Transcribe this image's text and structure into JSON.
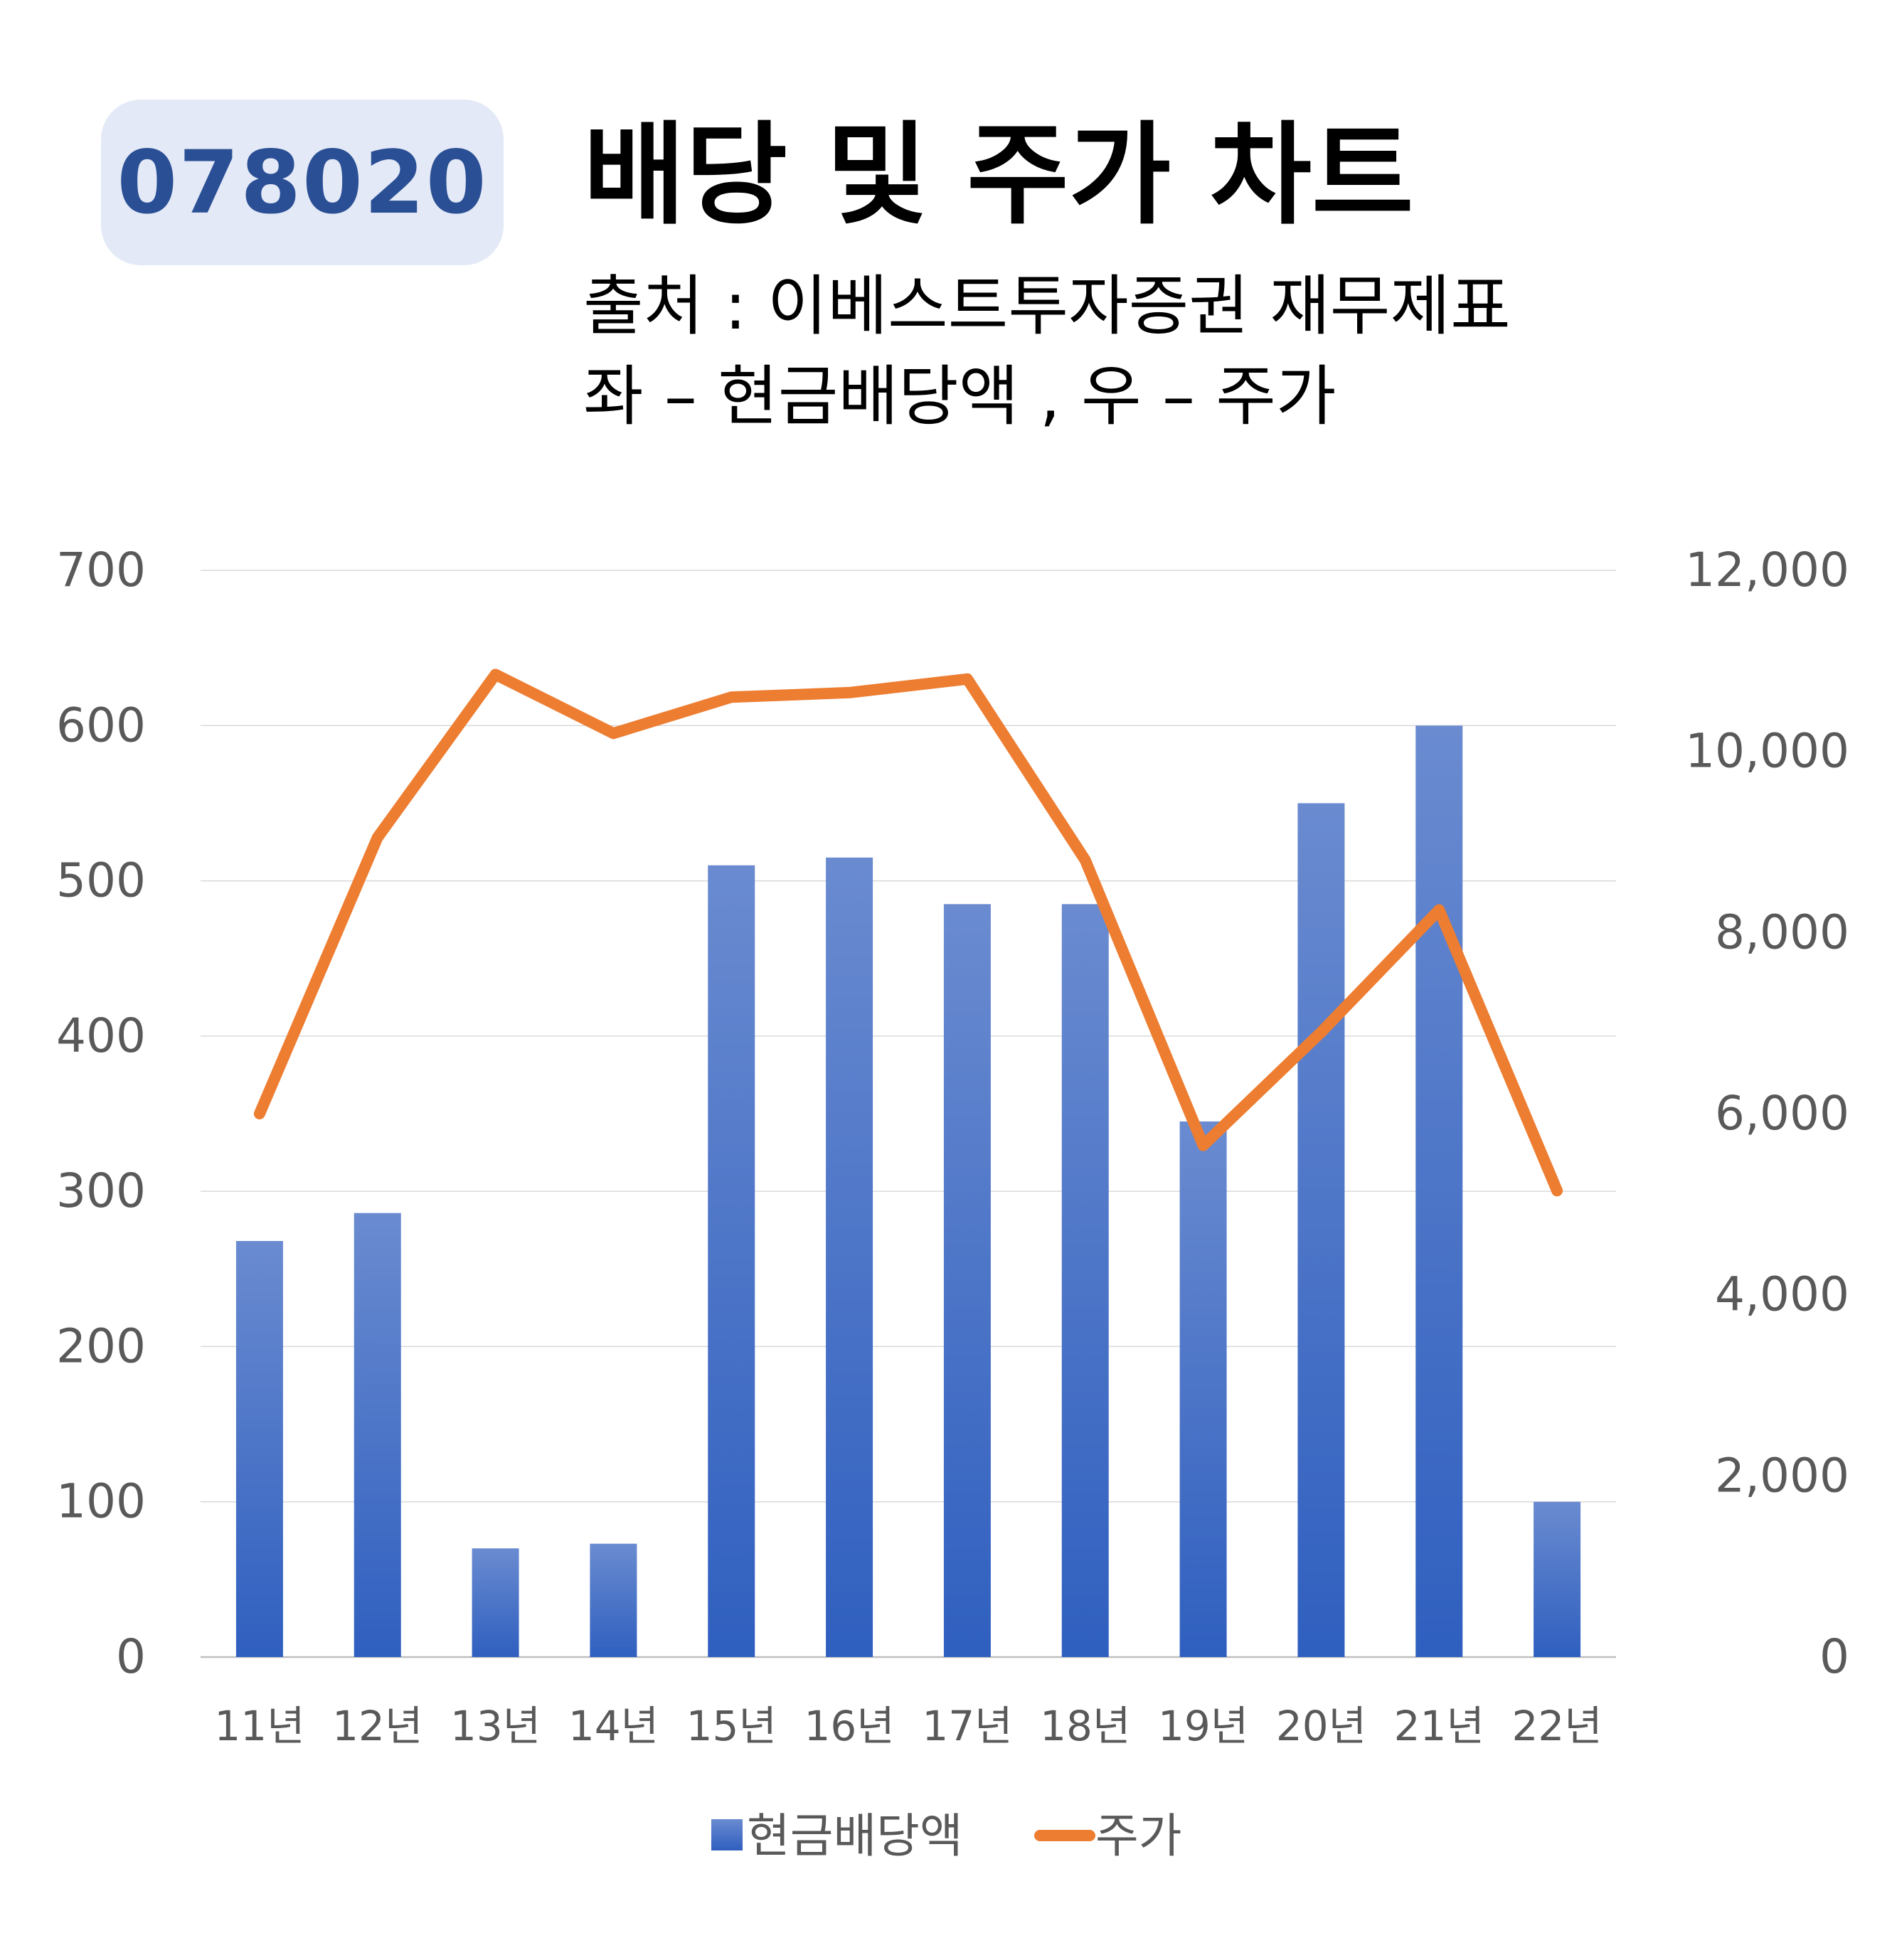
{
  "header": {
    "code": "078020",
    "title": "배당 및 주가 차트",
    "subtitle_source": "출처 : 이베스트투자증권 재무제표",
    "subtitle_axes": "좌 – 현금배당액 , 우 – 주가"
  },
  "colors": {
    "bar_top": "#6a8bd0",
    "bar_bottom": "#2f5fbf",
    "line": "#ed7d31",
    "grid": "#d9d9d9",
    "badge_bg": "#e3e9f6",
    "badge_text": "#2a4f95"
  },
  "chart_data": {
    "type": "bar",
    "categories": [
      "11년",
      "12년",
      "13년",
      "14년",
      "15년",
      "16년",
      "17년",
      "18년",
      "19년",
      "20년",
      "21년",
      "22년"
    ],
    "series": [
      {
        "name": "현금배당액",
        "type": "bar",
        "axis": "left",
        "values": [
          268,
          286,
          70,
          73,
          510,
          515,
          485,
          485,
          345,
          550,
          600,
          100
        ]
      },
      {
        "name": "주가",
        "type": "line",
        "axis": "right",
        "values": [
          6000,
          9050,
          10850,
          10200,
          10600,
          10650,
          10800,
          8800,
          5650,
          6900,
          8250,
          5150
        ]
      }
    ],
    "left_axis": {
      "ylim": [
        0,
        700
      ],
      "ticks": [
        0,
        100,
        200,
        300,
        400,
        500,
        600,
        700
      ],
      "tick_labels": [
        "0",
        "100",
        "200",
        "300",
        "400",
        "500",
        "600",
        "700"
      ]
    },
    "right_axis": {
      "ylim": [
        0,
        12000
      ],
      "ticks": [
        0,
        2000,
        4000,
        6000,
        8000,
        10000,
        12000
      ],
      "tick_labels": [
        "0",
        "2,000",
        "4,000",
        "6,000",
        "8,000",
        "10,000",
        "12,000"
      ]
    },
    "grid": true,
    "legend": "bottom"
  }
}
